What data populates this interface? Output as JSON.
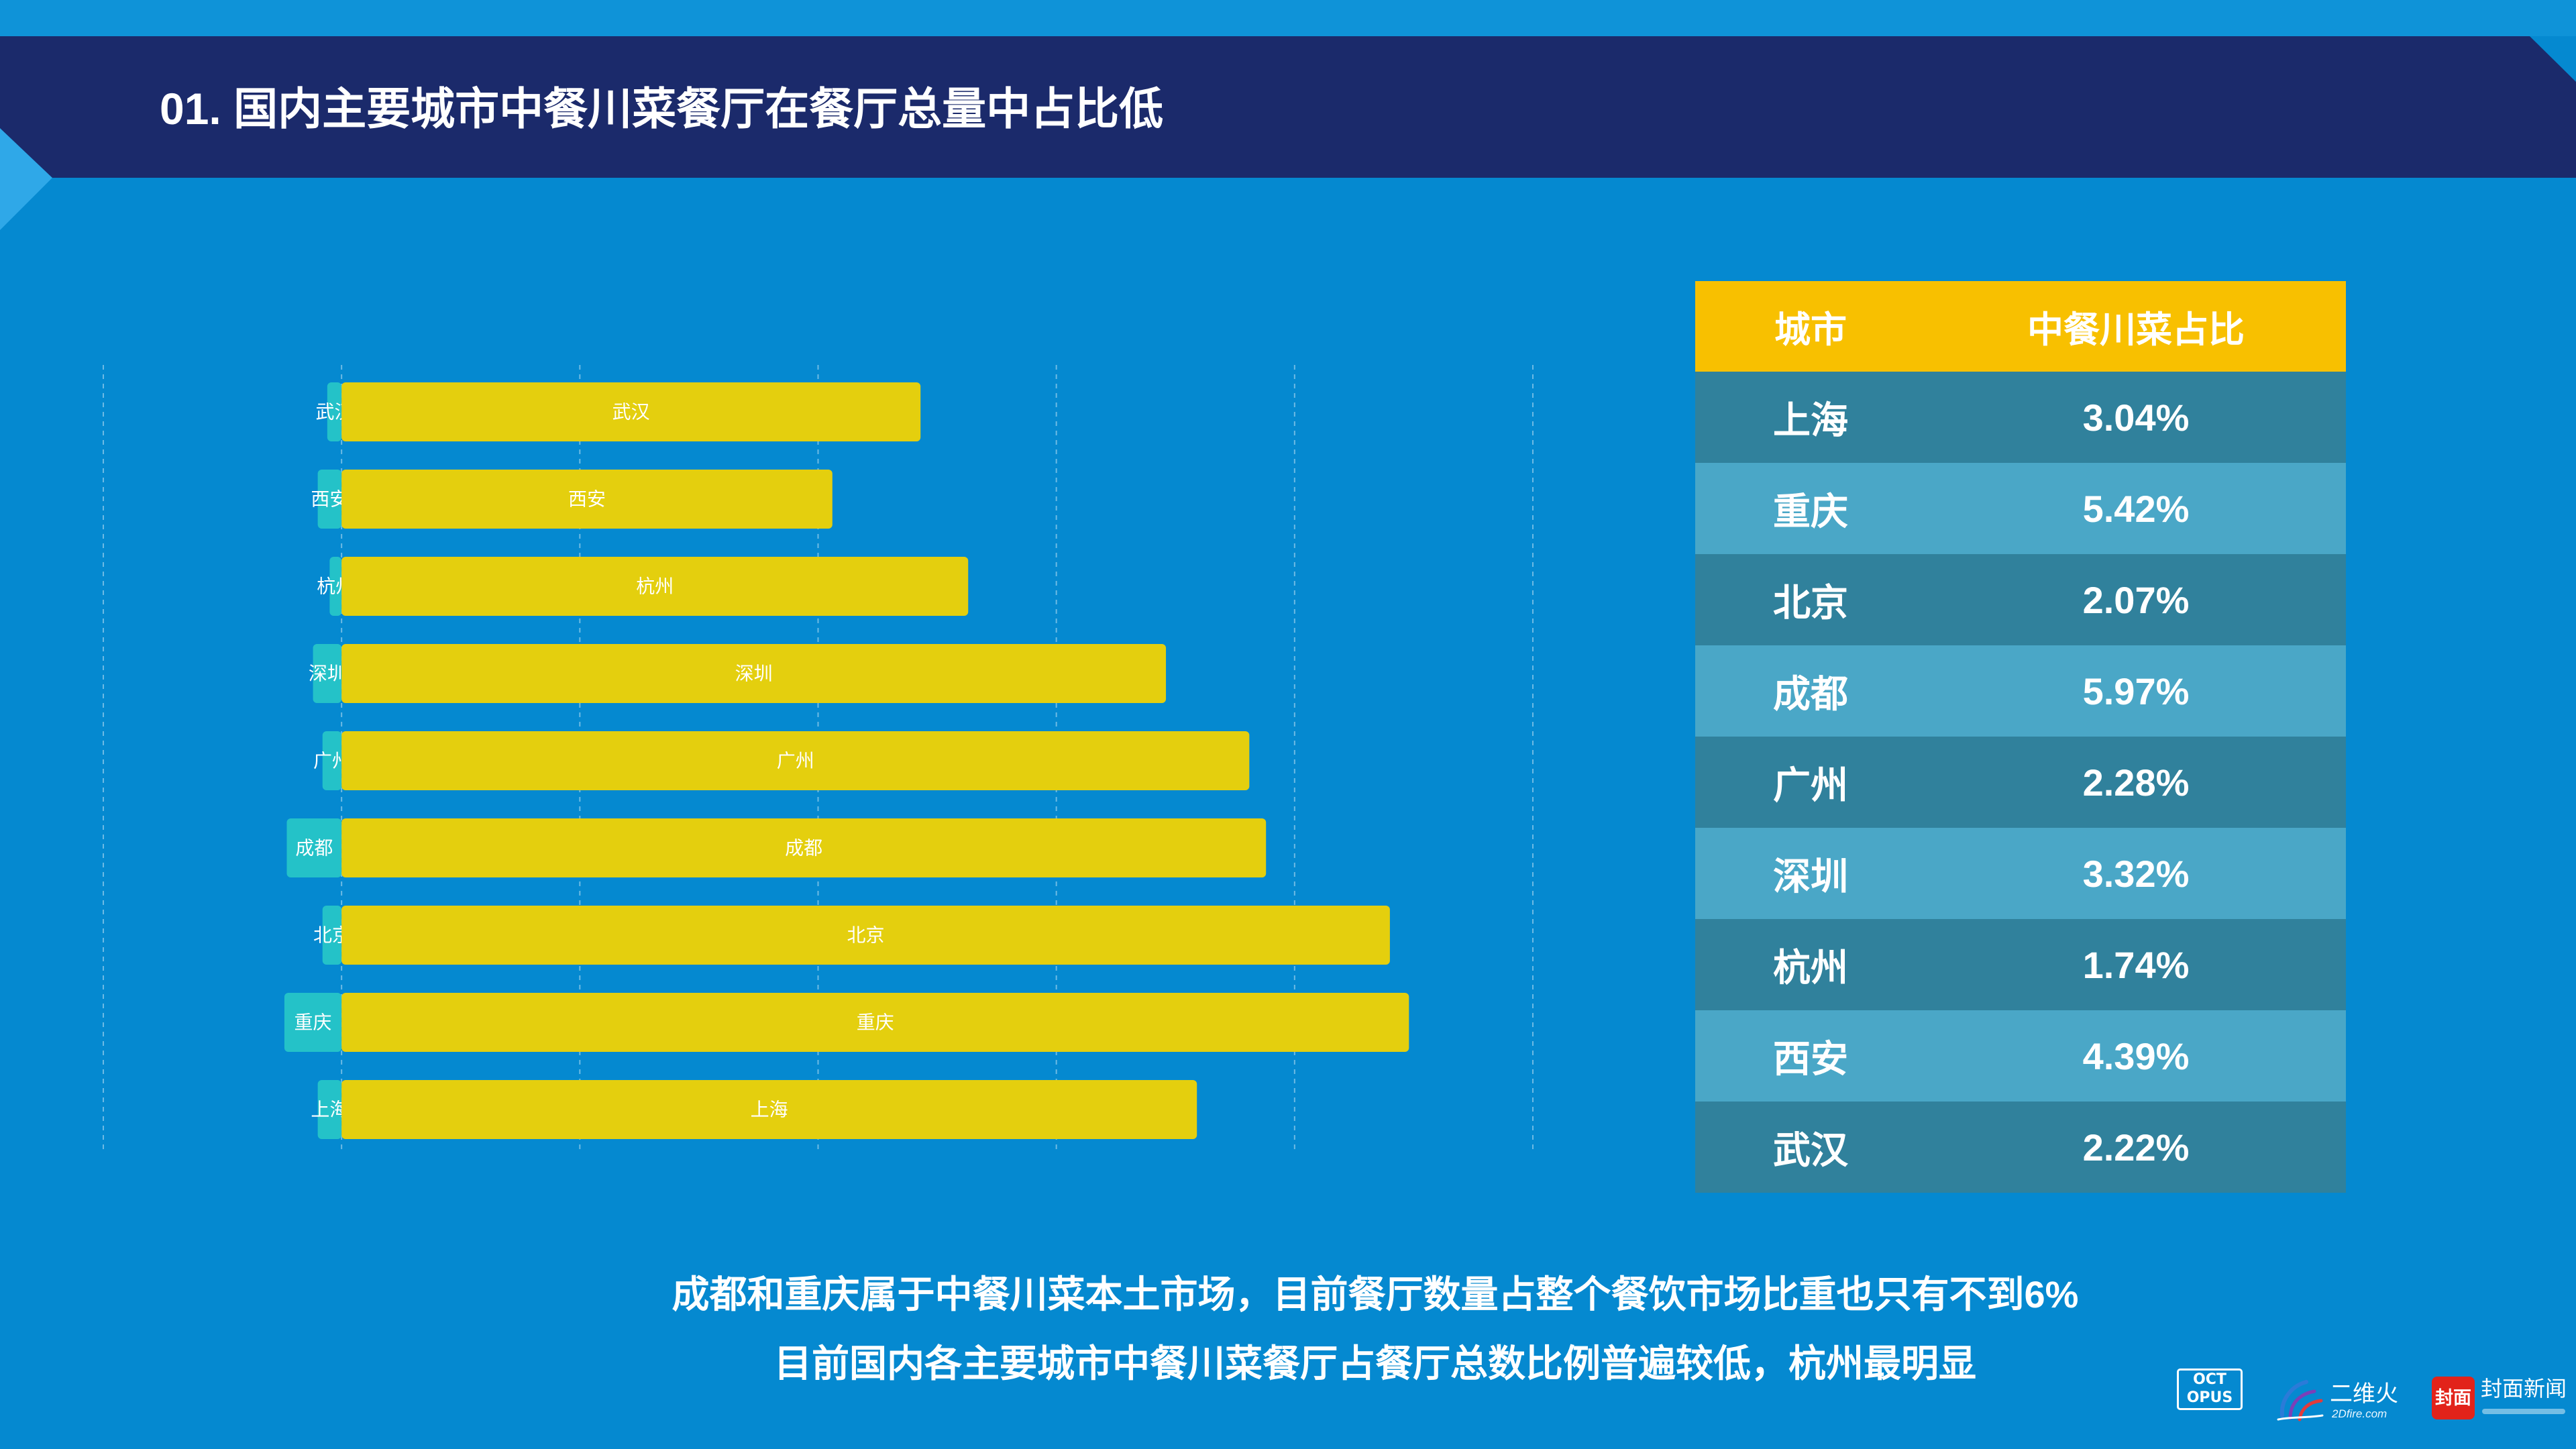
{
  "header": {
    "title": "01. 国内主要城市中餐川菜餐厅在餐厅总量中占比低"
  },
  "chart_data": {
    "type": "bar",
    "orientation": "horizontal",
    "categories": [
      "上海",
      "重庆",
      "北京",
      "成都",
      "广州",
      "深圳",
      "杭州",
      "西安",
      "武汉"
    ],
    "series": [
      {
        "color": "#24c2c8",
        "values": [
          -0.1,
          -0.24,
          -0.08,
          -0.23,
          -0.08,
          -0.12,
          -0.05,
          -0.1,
          -0.06
        ]
      },
      {
        "color": "#e4cf0e",
        "values": [
          3.59,
          4.48,
          4.4,
          3.88,
          3.81,
          3.46,
          2.63,
          2.06,
          2.43
        ]
      }
    ],
    "xlim": [
      -1,
      5
    ],
    "grid": true,
    "legend": "none"
  },
  "table": {
    "headers": [
      "城市",
      "中餐川菜占比"
    ],
    "rows": [
      {
        "city": "上海",
        "share": "3.04%"
      },
      {
        "city": "重庆",
        "share": "5.42%"
      },
      {
        "city": "北京",
        "share": "2.07%"
      },
      {
        "city": "成都",
        "share": "5.97%"
      },
      {
        "city": "广州",
        "share": "2.28%"
      },
      {
        "city": "深圳",
        "share": "3.32%"
      },
      {
        "city": "杭州",
        "share": "1.74%"
      },
      {
        "city": "西安",
        "share": "4.39%"
      },
      {
        "city": "武汉",
        "share": "2.22%"
      }
    ]
  },
  "captions": [
    "成都和重庆属于中餐川菜本土市场，目前餐厅数量占整个餐饮市场比重也只有不到6%",
    "目前国内各主要城市中餐川菜餐厅占餐厅总数比例普遍较低，杭州最明显"
  ],
  "logos": {
    "oct_top": "OCT",
    "oct_bottom": "OPUS",
    "erweihuo_name": "二维火",
    "erweihuo_url": "2Dfire.com",
    "fengmian_icon": "封面",
    "fengmian_name": "封面新闻"
  },
  "colors": {
    "background": "#0589d0",
    "header_band": "#1b2a6b",
    "table_header": "#f8c000",
    "table_row_dark": "#30819c",
    "table_row_light": "#4aa7c7",
    "fengmian_red": "#e2231a"
  }
}
